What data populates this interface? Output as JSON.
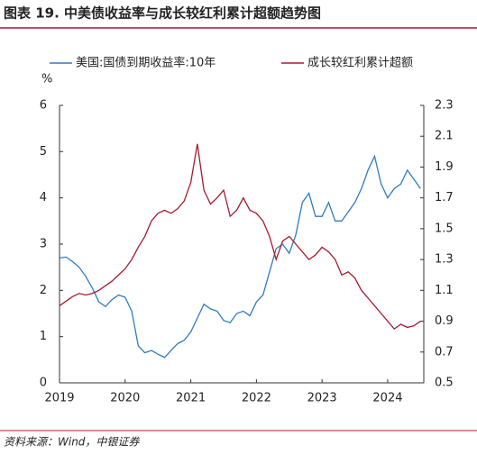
{
  "chart_data": {
    "type": "line",
    "title": "图表 19. 中美债收益率与成长较红利累计超额趋势图",
    "y_label": "%",
    "source": "资料来源：Wind，中银证券",
    "x": [
      2019.0,
      2019.1,
      2019.2,
      2019.3,
      2019.4,
      2019.5,
      2019.6,
      2019.7,
      2019.8,
      2019.9,
      2020.0,
      2020.1,
      2020.2,
      2020.3,
      2020.4,
      2020.5,
      2020.6,
      2020.7,
      2020.8,
      2020.9,
      2021.0,
      2021.1,
      2021.2,
      2021.3,
      2021.4,
      2021.5,
      2021.6,
      2021.7,
      2021.8,
      2021.9,
      2022.0,
      2022.1,
      2022.2,
      2022.3,
      2022.4,
      2022.5,
      2022.6,
      2022.7,
      2022.8,
      2022.9,
      2023.0,
      2023.1,
      2023.2,
      2023.3,
      2023.4,
      2023.5,
      2023.6,
      2023.7,
      2023.8,
      2023.9,
      2024.0,
      2024.1,
      2024.2,
      2024.3,
      2024.4,
      2024.5
    ],
    "series": [
      {
        "name": "美国:国债到期收益率:10年",
        "color": "#2f7bbf",
        "axis": "y",
        "values": [
          2.7,
          2.72,
          2.62,
          2.5,
          2.3,
          2.05,
          1.75,
          1.65,
          1.8,
          1.9,
          1.85,
          1.55,
          0.8,
          0.65,
          0.7,
          0.62,
          0.55,
          0.7,
          0.85,
          0.92,
          1.1,
          1.4,
          1.7,
          1.6,
          1.55,
          1.35,
          1.3,
          1.5,
          1.55,
          1.45,
          1.75,
          1.9,
          2.4,
          2.9,
          3.0,
          2.8,
          3.2,
          3.9,
          4.1,
          3.6,
          3.6,
          3.9,
          3.5,
          3.5,
          3.7,
          3.9,
          4.2,
          4.6,
          4.9,
          4.3,
          4.0,
          4.2,
          4.3,
          4.6,
          4.4,
          4.2
        ]
      },
      {
        "name": "成长较红利累计超额",
        "color": "#a8192e",
        "axis": "y2",
        "values": [
          1.0,
          1.03,
          1.06,
          1.08,
          1.07,
          1.08,
          1.1,
          1.13,
          1.16,
          1.2,
          1.24,
          1.3,
          1.38,
          1.45,
          1.55,
          1.6,
          1.62,
          1.6,
          1.63,
          1.68,
          1.8,
          2.05,
          1.75,
          1.66,
          1.7,
          1.75,
          1.58,
          1.62,
          1.7,
          1.62,
          1.6,
          1.55,
          1.45,
          1.3,
          1.42,
          1.45,
          1.4,
          1.35,
          1.3,
          1.33,
          1.38,
          1.35,
          1.3,
          1.2,
          1.22,
          1.18,
          1.1,
          1.05,
          1.0,
          0.95,
          0.9,
          0.85,
          0.88,
          0.86,
          0.87,
          0.9
        ]
      }
    ],
    "xlim": [
      2019,
      2024.55
    ],
    "xticks": [
      2019,
      2020,
      2021,
      2022,
      2023,
      2024
    ],
    "ylim": [
      0,
      6
    ],
    "yticks": [
      0,
      1,
      2,
      3,
      4,
      5,
      6
    ],
    "y2lim": [
      0.5,
      2.3
    ],
    "y2ticks": [
      0.5,
      0.7,
      0.9,
      1.1,
      1.3,
      1.5,
      1.7,
      1.9,
      2.1,
      2.3
    ],
    "grid": false,
    "legend": "top"
  }
}
